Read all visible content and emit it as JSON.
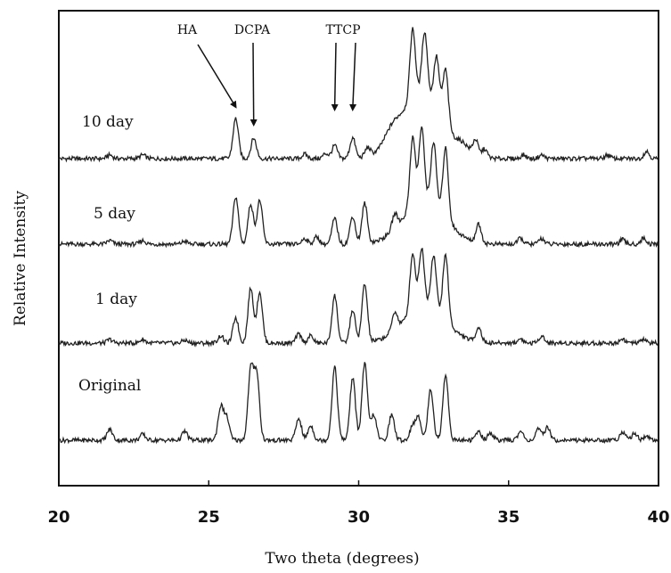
{
  "chart_data": {
    "type": "line",
    "xlabel": "Two theta (degrees)",
    "ylabel": "Relative Intensity",
    "xlim": [
      20,
      40
    ],
    "x_ticks": [
      20,
      25,
      30,
      35,
      40
    ],
    "grid": false,
    "series": [
      {
        "name": "10 day",
        "baseline": 3,
        "peaks": [
          [
            21.7,
            0.05
          ],
          [
            22.8,
            0.05
          ],
          [
            25.9,
            0.55
          ],
          [
            26.5,
            0.28
          ],
          [
            28.2,
            0.06
          ],
          [
            28.9,
            0.07
          ],
          [
            29.2,
            0.18
          ],
          [
            29.8,
            0.28
          ],
          [
            30.3,
            0.12
          ],
          [
            31.8,
            0.95
          ],
          [
            32.2,
            0.85
          ],
          [
            32.6,
            0.7
          ],
          [
            32.9,
            0.75
          ],
          [
            33.9,
            0.22
          ],
          [
            34.2,
            0.12
          ],
          [
            35.5,
            0.05
          ],
          [
            36.1,
            0.05
          ],
          [
            38.3,
            0.05
          ],
          [
            39.6,
            0.1
          ]
        ],
        "broad": [
          [
            32.1,
            1.4,
            0.9
          ],
          [
            31.1,
            0.5,
            0.15
          ],
          [
            33.5,
            0.4,
            0.1
          ]
        ]
      },
      {
        "name": "5 day",
        "baseline": 2,
        "peaks": [
          [
            21.7,
            0.05
          ],
          [
            22.8,
            0.05
          ],
          [
            24.2,
            0.04
          ],
          [
            25.9,
            0.65
          ],
          [
            26.4,
            0.55
          ],
          [
            26.7,
            0.6
          ],
          [
            28.2,
            0.08
          ],
          [
            28.6,
            0.1
          ],
          [
            29.2,
            0.35
          ],
          [
            29.8,
            0.38
          ],
          [
            30.2,
            0.55
          ],
          [
            31.2,
            0.2
          ],
          [
            31.8,
            0.95
          ],
          [
            32.1,
            1.0
          ],
          [
            32.5,
            0.85
          ],
          [
            32.9,
            0.95
          ],
          [
            34.0,
            0.25
          ],
          [
            35.4,
            0.08
          ],
          [
            36.1,
            0.08
          ],
          [
            38.8,
            0.06
          ],
          [
            39.5,
            0.08
          ]
        ],
        "broad": [
          [
            32.2,
            1.4,
            0.6
          ]
        ]
      },
      {
        "name": "1 day",
        "baseline": 1,
        "peaks": [
          [
            21.7,
            0.05
          ],
          [
            22.8,
            0.05
          ],
          [
            24.2,
            0.04
          ],
          [
            25.4,
            0.1
          ],
          [
            25.9,
            0.35
          ],
          [
            26.4,
            0.75
          ],
          [
            26.7,
            0.7
          ],
          [
            28.0,
            0.12
          ],
          [
            28.4,
            0.1
          ],
          [
            29.2,
            0.65
          ],
          [
            29.8,
            0.45
          ],
          [
            30.2,
            0.8
          ],
          [
            31.2,
            0.25
          ],
          [
            31.8,
            0.8
          ],
          [
            32.1,
            0.8
          ],
          [
            32.5,
            0.75
          ],
          [
            32.9,
            0.9
          ],
          [
            34.0,
            0.2
          ],
          [
            35.4,
            0.06
          ],
          [
            36.1,
            0.1
          ],
          [
            38.8,
            0.06
          ],
          [
            39.5,
            0.05
          ]
        ],
        "broad": [
          [
            32.2,
            1.4,
            0.5
          ]
        ]
      },
      {
        "name": "Original",
        "baseline": 0,
        "peaks": [
          [
            21.7,
            0.15
          ],
          [
            22.8,
            0.08
          ],
          [
            24.2,
            0.12
          ],
          [
            25.4,
            0.45
          ],
          [
            25.6,
            0.3
          ],
          [
            26.4,
            0.95
          ],
          [
            26.6,
            0.9
          ],
          [
            28.0,
            0.3
          ],
          [
            28.4,
            0.2
          ],
          [
            29.2,
            1.0
          ],
          [
            29.8,
            0.85
          ],
          [
            30.2,
            1.05
          ],
          [
            30.5,
            0.35
          ],
          [
            31.1,
            0.35
          ],
          [
            31.8,
            0.2
          ],
          [
            32.0,
            0.3
          ],
          [
            32.4,
            0.7
          ],
          [
            32.9,
            0.9
          ],
          [
            34.0,
            0.12
          ],
          [
            34.4,
            0.1
          ],
          [
            35.4,
            0.12
          ],
          [
            36.0,
            0.15
          ],
          [
            36.3,
            0.18
          ],
          [
            38.8,
            0.12
          ],
          [
            39.2,
            0.1
          ],
          [
            39.6,
            0.06
          ]
        ],
        "broad": []
      }
    ],
    "annotations": [
      {
        "label": "HA",
        "x": 25.9
      },
      {
        "label": "DCPA",
        "x": 26.5
      },
      {
        "label": "TTCP",
        "x": 29.2
      },
      {
        "label": "TTCP",
        "x": 29.8
      }
    ],
    "annotation_texts": {
      "ha": "HA",
      "dcpa": "DCPA",
      "ttcp": "TTCP"
    }
  }
}
